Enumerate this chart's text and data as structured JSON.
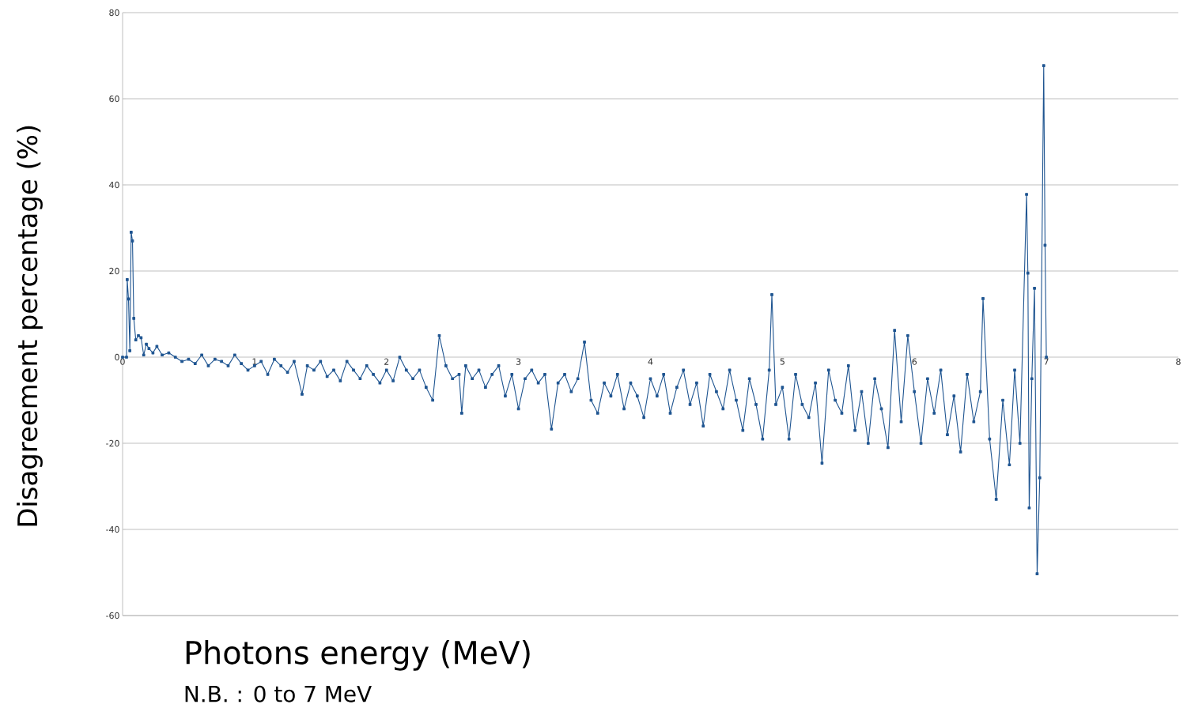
{
  "chart_data": {
    "type": "line",
    "ylabel": "Disagreement percentage (%)",
    "xlabel": "Photons energy (MeV)",
    "annotations": [
      "N.B. : 0 to 7 MeV"
    ],
    "xlim": [
      0,
      8
    ],
    "xticks": [
      0,
      1,
      2,
      3,
      4,
      5,
      6,
      7,
      8
    ],
    "ylim": [
      -60,
      80
    ],
    "yticks": [
      -60,
      -40,
      -20,
      0,
      20,
      40,
      60,
      80
    ],
    "grid": "y",
    "marker": "square",
    "line_style": "solid",
    "series": [
      {
        "color": "#1f5591",
        "x": [
          0,
          0.03,
          0.035,
          0.045,
          0.055,
          0.065,
          0.075,
          0.085,
          0.1,
          0.12,
          0.14,
          0.16,
          0.18,
          0.2,
          0.23,
          0.26,
          0.3,
          0.35,
          0.4,
          0.45,
          0.5,
          0.55,
          0.6,
          0.65,
          0.7,
          0.75,
          0.8,
          0.85,
          0.9,
          0.95,
          1.0,
          1.05,
          1.1,
          1.15,
          1.2,
          1.25,
          1.3,
          1.36,
          1.4,
          1.45,
          1.5,
          1.55,
          1.6,
          1.65,
          1.7,
          1.75,
          1.8,
          1.85,
          1.9,
          1.95,
          2.0,
          2.05,
          2.1,
          2.15,
          2.2,
          2.25,
          2.3,
          2.35,
          2.4,
          2.45,
          2.5,
          2.55,
          2.57,
          2.6,
          2.65,
          2.7,
          2.75,
          2.8,
          2.85,
          2.9,
          2.95,
          3.0,
          3.05,
          3.1,
          3.15,
          3.2,
          3.25,
          3.3,
          3.35,
          3.4,
          3.45,
          3.5,
          3.55,
          3.6,
          3.65,
          3.7,
          3.75,
          3.8,
          3.85,
          3.9,
          3.95,
          4.0,
          4.05,
          4.1,
          4.15,
          4.2,
          4.25,
          4.3,
          4.35,
          4.4,
          4.45,
          4.5,
          4.55,
          4.6,
          4.65,
          4.7,
          4.75,
          4.8,
          4.85,
          4.9,
          4.92,
          4.95,
          5.0,
          5.05,
          5.1,
          5.15,
          5.2,
          5.25,
          5.3,
          5.35,
          5.4,
          5.45,
          5.5,
          5.55,
          5.6,
          5.65,
          5.7,
          5.75,
          5.8,
          5.85,
          5.9,
          5.95,
          6.0,
          6.05,
          6.1,
          6.15,
          6.2,
          6.25,
          6.3,
          6.35,
          6.4,
          6.45,
          6.5,
          6.52,
          6.57,
          6.62,
          6.67,
          6.72,
          6.76,
          6.8,
          6.85,
          6.86,
          6.87,
          6.89,
          6.91,
          6.93,
          6.95,
          6.98,
          6.99,
          7.0
        ],
        "values": [
          0,
          0,
          18,
          13.5,
          1.5,
          29,
          27,
          9,
          4,
          5,
          4.5,
          0.5,
          3,
          2,
          1,
          2.5,
          0.5,
          1,
          0,
          -1,
          -0.5,
          -1.5,
          0.5,
          -2,
          -0.5,
          -1,
          -2,
          0.5,
          -1.5,
          -3,
          -2,
          -1,
          -4,
          -0.5,
          -2,
          -3.5,
          -1,
          -8.6,
          -2,
          -3,
          -1,
          -4.5,
          -3,
          -5.5,
          -1,
          -3,
          -5,
          -2,
          -4,
          -6,
          -3,
          -5.5,
          0,
          -3,
          -5,
          -3,
          -7,
          -10,
          5,
          -2,
          -5,
          -4,
          -13,
          -2,
          -5,
          -3,
          -7,
          -4,
          -2,
          -9,
          -4,
          -12,
          -5,
          -3,
          -6,
          -4,
          -16.7,
          -6,
          -4,
          -8,
          -5,
          3.5,
          -10,
          -13,
          -6,
          -9,
          -4,
          -12,
          -6,
          -9,
          -14,
          -5,
          -9,
          -4,
          -13,
          -7,
          -3,
          -11,
          -6,
          -16,
          -4,
          -8,
          -12,
          -3,
          -10,
          -17,
          -5,
          -11,
          -19,
          -3,
          14.5,
          -11,
          -7,
          -19,
          -4,
          -11,
          -14,
          -6,
          -24.6,
          -3,
          -10,
          -13,
          -2,
          -17,
          -8,
          -20,
          -5,
          -12,
          -21,
          6.2,
          -15,
          5,
          -8,
          -20,
          -5,
          -13,
          -3,
          -18,
          -9,
          -22,
          -4,
          -15,
          -8,
          13.6,
          -19,
          -33,
          -10,
          -25,
          -3,
          -20,
          37.8,
          19.5,
          -35,
          -5,
          16,
          -50.3,
          -28,
          67.7,
          26,
          0
        ]
      }
    ]
  }
}
